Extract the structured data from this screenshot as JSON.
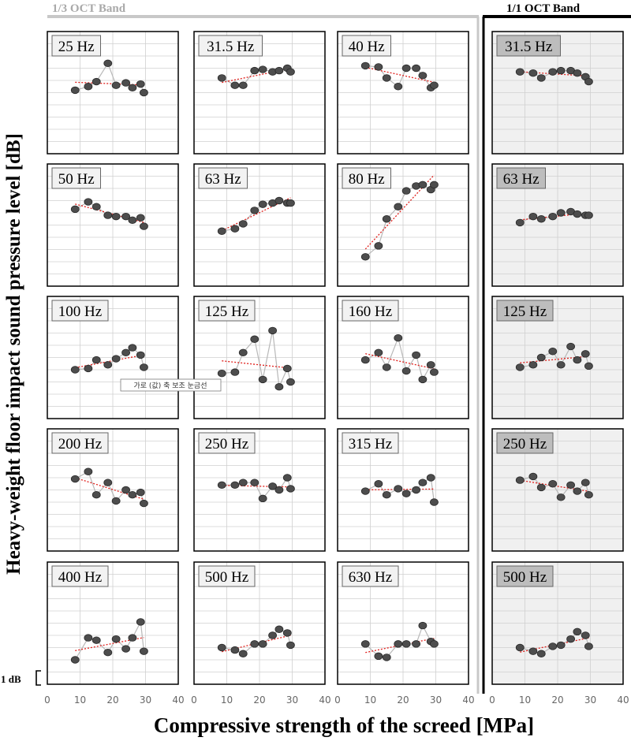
{
  "header": {
    "left_band": "1/3 OCT Band",
    "right_band": "1/1 OCT Band"
  },
  "axes": {
    "ylabel": "Heavy-weight floor impact sound pressure level [dB]",
    "xlabel": "Compressive strength of the screed [MPa]",
    "scale_label": "1 dB",
    "x_ticks": [
      "0",
      "10",
      "20",
      "30",
      "40"
    ],
    "xlim": [
      0,
      40
    ]
  },
  "annotation": {
    "text": "가로 (값) 축 보조 눈금선"
  },
  "colors": {
    "marker": "#4d4d4d",
    "connector": "#b8b8b8",
    "trend": "#e0201c",
    "grid": "#d0d0d0",
    "oct_bg": "#f0f0f0",
    "oct_label_bg": "#bdbdbd"
  },
  "chart_data": {
    "type": "scatter",
    "x": [
      8.5,
      12.5,
      15,
      18.5,
      21,
      24,
      26,
      28.5,
      29.5
    ],
    "ylim": [
      0,
      10
    ],
    "panels": [
      {
        "label": "25 Hz",
        "band": "1/3",
        "y": [
          5.2,
          5.5,
          5.9,
          7.4,
          5.6,
          5.8,
          5.4,
          5.7,
          5.0
        ]
      },
      {
        "label": "31.5 Hz",
        "band": "1/3",
        "y": [
          6.2,
          5.6,
          5.6,
          6.8,
          6.9,
          6.7,
          6.8,
          7.0,
          6.7
        ]
      },
      {
        "label": "40 Hz",
        "band": "1/3",
        "y": [
          7.2,
          7.1,
          6.2,
          5.5,
          7.0,
          7.0,
          6.4,
          5.4,
          5.6
        ]
      },
      {
        "label": "31.5 Hz",
        "band": "1/1",
        "y": [
          6.7,
          6.6,
          6.2,
          6.7,
          6.8,
          6.8,
          6.6,
          6.3,
          5.9
        ]
      },
      {
        "label": "50 Hz",
        "band": "1/3",
        "y": [
          6.3,
          6.9,
          6.5,
          5.8,
          5.7,
          5.7,
          5.4,
          5.6,
          4.9
        ]
      },
      {
        "label": "63 Hz",
        "band": "1/3",
        "y": [
          4.5,
          4.7,
          5.1,
          6.2,
          6.7,
          6.8,
          7.0,
          6.8,
          6.8
        ]
      },
      {
        "label": "80 Hz",
        "band": "1/3",
        "y": [
          2.4,
          3.3,
          5.5,
          6.5,
          7.8,
          8.2,
          8.3,
          7.9,
          8.3
        ]
      },
      {
        "label": "63 Hz",
        "band": "1/1",
        "y": [
          5.2,
          5.7,
          5.5,
          5.7,
          6.0,
          6.1,
          5.9,
          5.8,
          5.8
        ]
      },
      {
        "label": "100 Hz",
        "band": "1/3",
        "y": [
          4.0,
          4.1,
          4.8,
          4.4,
          4.9,
          5.4,
          5.8,
          5.2,
          4.2
        ]
      },
      {
        "label": "125 Hz",
        "band": "1/3",
        "y": [
          3.7,
          3.8,
          5.4,
          6.5,
          3.2,
          7.2,
          2.6,
          4.1,
          3.0
        ]
      },
      {
        "label": "160 Hz",
        "band": "1/3",
        "y": [
          4.8,
          5.4,
          4.2,
          6.6,
          3.9,
          5.2,
          3.2,
          4.4,
          3.8
        ]
      },
      {
        "label": "125 Hz",
        "band": "1/1",
        "y": [
          4.2,
          4.4,
          5.0,
          5.5,
          4.4,
          5.9,
          4.8,
          5.3,
          4.3
        ]
      },
      {
        "label": "200 Hz",
        "band": "1/3",
        "y": [
          5.9,
          6.5,
          4.6,
          5.6,
          4.1,
          5.0,
          4.6,
          4.8,
          3.9
        ]
      },
      {
        "label": "250 Hz",
        "band": "1/3",
        "y": [
          5.4,
          5.4,
          5.6,
          5.6,
          4.3,
          5.3,
          5.0,
          6.0,
          5.1
        ]
      },
      {
        "label": "315 Hz",
        "band": "1/3",
        "y": [
          4.9,
          5.5,
          4.6,
          5.1,
          4.7,
          5.0,
          5.6,
          6.0,
          4.0
        ]
      },
      {
        "label": "250 Hz",
        "band": "1/1",
        "y": [
          5.8,
          6.1,
          5.2,
          5.5,
          4.4,
          5.4,
          4.9,
          5.6,
          4.6
        ]
      },
      {
        "label": "400 Hz",
        "band": "1/3",
        "y": [
          2.0,
          3.8,
          3.6,
          2.6,
          3.7,
          2.9,
          3.8,
          5.1,
          2.7
        ]
      },
      {
        "label": "500 Hz",
        "band": "1/3",
        "y": [
          3.0,
          2.8,
          2.5,
          3.3,
          3.3,
          4.0,
          4.5,
          4.2,
          3.2
        ]
      },
      {
        "label": "630 Hz",
        "band": "1/3",
        "y": [
          3.3,
          2.3,
          2.2,
          3.3,
          3.3,
          3.3,
          4.8,
          3.5,
          3.3
        ]
      },
      {
        "label": "500 Hz",
        "band": "1/1",
        "y": [
          3.0,
          2.7,
          2.5,
          3.1,
          3.2,
          3.7,
          4.3,
          4.0,
          3.1
        ]
      }
    ]
  }
}
